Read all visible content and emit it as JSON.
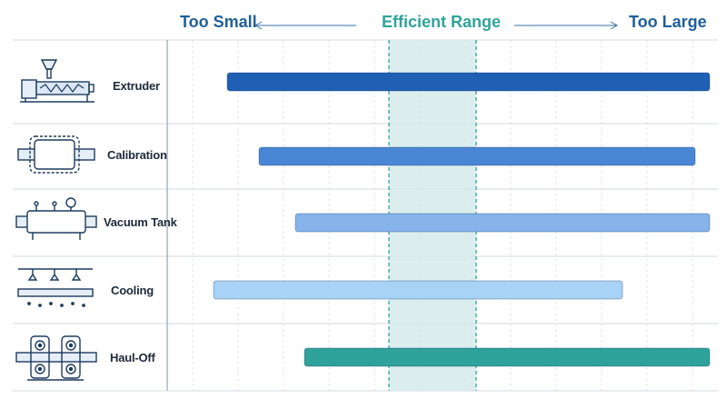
{
  "header": {
    "too_small": "Too Small",
    "efficient": "Efficient Range",
    "too_large": "Too Large"
  },
  "colors": {
    "header_blue": "#1f5f9a",
    "efficient_teal": "#2fa39b",
    "band_fill": "#cfe8e7",
    "grid": "#d6dbe2"
  },
  "rows": [
    {
      "label": "Extruder",
      "icon": "extruder-icon",
      "start": 0.1,
      "end": 5.6,
      "color": "#1f5fb4"
    },
    {
      "label": "Calibration",
      "icon": "calibration-icon",
      "start": 0.45,
      "end": 5.25,
      "color": "#4a86d3"
    },
    {
      "label": "Vacuum Tank",
      "icon": "vacuum-tank-icon",
      "start": 0.85,
      "end": 5.65,
      "color": "#86b3ea"
    },
    {
      "label": "Cooling",
      "icon": "cooling-icon",
      "start": -0.05,
      "end": 4.45,
      "color": "#a8d2f6"
    },
    {
      "label": "Haul-Off",
      "icon": "haul-off-icon",
      "start": 0.95,
      "end": 5.8,
      "color": "#2fa39b"
    }
  ],
  "efficient_range": {
    "start": 2.5,
    "end": 3.6
  }
}
